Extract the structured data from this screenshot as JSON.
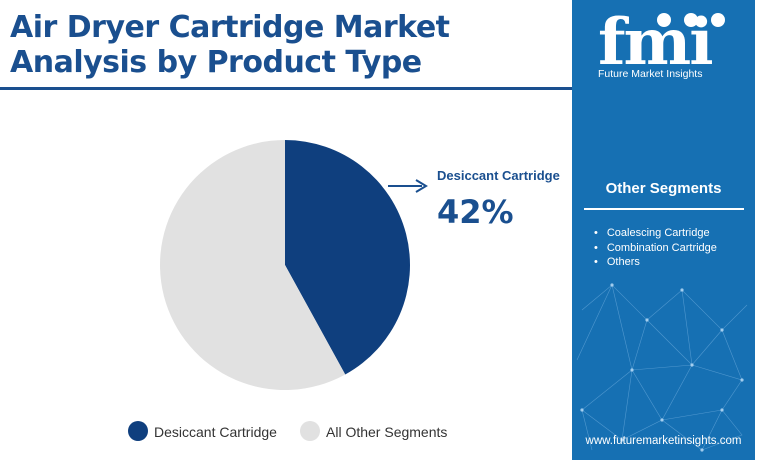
{
  "title": "Air Dryer Cartridge Market Analysis by Product Type",
  "brand": {
    "logo_text": "fmi",
    "name": "Future Market Insights",
    "url": "www.futuremarketinsights.com"
  },
  "other_segments": {
    "heading": "Other Segments",
    "items": [
      "Coalescing Cartridge",
      "Combination Cartridge",
      "Others"
    ]
  },
  "colors": {
    "primary": "#0f3f7e",
    "secondary": "#e1e1e1",
    "accent": "#1a4f8f",
    "sidebar": "#1670b3"
  },
  "chart_data": {
    "type": "pie",
    "title": "",
    "slices": [
      {
        "label": "Desiccant Cartridge",
        "value": 42,
        "display": "42%",
        "color": "#0f3f7e"
      },
      {
        "label": "All Other Segments",
        "value": 58,
        "color": "#e1e1e1"
      }
    ],
    "start_angle_deg": 0,
    "direction": "clockwise",
    "legend_position": "bottom"
  }
}
